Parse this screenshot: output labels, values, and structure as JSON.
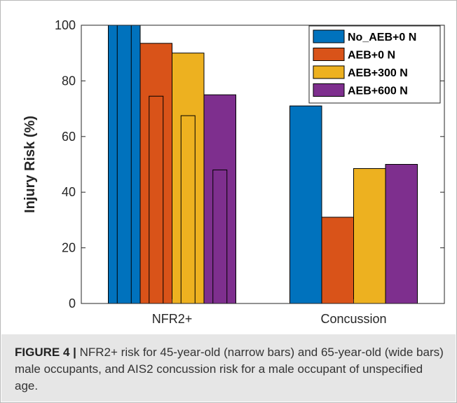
{
  "chart_data": {
    "type": "bar",
    "title": "",
    "ylabel": "Injury Risk (%)",
    "xlabel": "",
    "ylim": [
      0,
      100
    ],
    "yticks": [
      0,
      20,
      40,
      60,
      80,
      100
    ],
    "categories": [
      "NFR2+",
      "Concussion"
    ],
    "legend_position": "top-right",
    "grid": false,
    "series": [
      {
        "name": "No_AEB+0 N",
        "color": "#0072BD",
        "values": [
          100,
          71
        ],
        "narrow_values": [
          100,
          null
        ]
      },
      {
        "name": "AEB+0 N",
        "color": "#D95319",
        "values": [
          93.5,
          31
        ],
        "narrow_values": [
          74.5,
          null
        ]
      },
      {
        "name": "AEB+300 N",
        "color": "#EDB120",
        "values": [
          90,
          48.5
        ],
        "narrow_values": [
          67.5,
          null
        ]
      },
      {
        "name": "AEB+600 N",
        "color": "#7E2F8E",
        "values": [
          75,
          50
        ],
        "narrow_values": [
          48,
          null
        ]
      }
    ]
  },
  "caption": {
    "label": "FIGURE 4 |",
    "text": " NFR2+ risk for 45-year-old (narrow bars) and 65-year-old (wide bars) male occupants, and AIS2 concussion risk for a male occupant of unspecified age."
  }
}
